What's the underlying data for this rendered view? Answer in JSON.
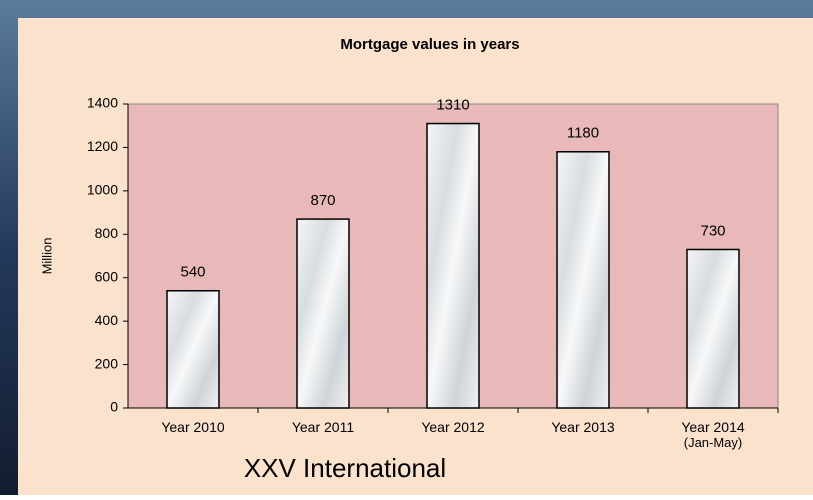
{
  "chart_data": {
    "type": "bar",
    "title": "Mortgage values in years",
    "y_label": "Million",
    "categories": [
      "Year 2010",
      "Year 2011",
      "Year 2012",
      "Year 2013",
      "Year 2014\n(Jan-May)"
    ],
    "values": [
      540,
      870,
      1310,
      1180,
      730
    ],
    "data_labels": true,
    "ylim": [
      0,
      1400
    ],
    "yticks": [
      0,
      200,
      400,
      600,
      800,
      1000,
      1200,
      1400
    ],
    "grid": false,
    "color": "#eef0f2",
    "plot_background": "#e9b9b9"
  },
  "caption": "XXV International"
}
